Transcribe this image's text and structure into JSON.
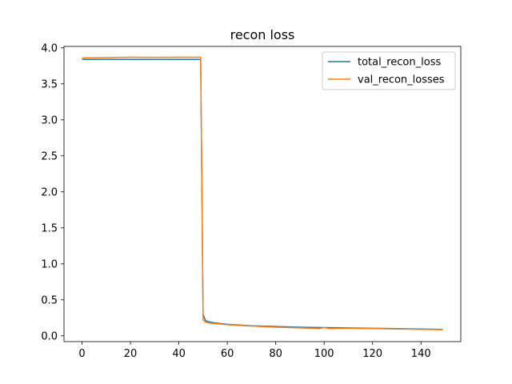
{
  "chart_data": {
    "type": "line",
    "title": "recon loss",
    "xlabel": "",
    "ylabel": "",
    "xlim": [
      -7.45,
      156.45
    ],
    "ylim": [
      -0.08,
      4.02
    ],
    "xticks": [
      0,
      20,
      40,
      60,
      80,
      100,
      120,
      140
    ],
    "yticks": [
      0.0,
      0.5,
      1.0,
      1.5,
      2.0,
      2.5,
      3.0,
      3.5,
      4.0
    ],
    "ytick_labels": [
      "0.0",
      "0.5",
      "1.0",
      "1.5",
      "2.0",
      "2.5",
      "3.0",
      "3.5",
      "4.0"
    ],
    "grid": false,
    "legend_position": "upper right",
    "series": [
      {
        "name": "total_recon_loss",
        "color": "#1f77b4",
        "x": [
          0,
          10,
          20,
          30,
          40,
          49,
          50,
          51,
          53,
          55,
          60,
          65,
          70,
          80,
          90,
          100,
          110,
          120,
          130,
          140,
          149
        ],
        "y": [
          3.84,
          3.84,
          3.84,
          3.84,
          3.84,
          3.84,
          0.3,
          0.21,
          0.19,
          0.18,
          0.16,
          0.15,
          0.14,
          0.13,
          0.12,
          0.115,
          0.11,
          0.105,
          0.1,
          0.095,
          0.09
        ]
      },
      {
        "name": "val_recon_losses",
        "color": "#ff7f0e",
        "x": [
          0,
          10,
          20,
          30,
          40,
          49,
          50,
          51,
          53,
          55,
          60,
          65,
          70,
          80,
          90,
          98,
          100,
          102,
          110,
          120,
          130,
          140,
          149
        ],
        "y": [
          3.86,
          3.865,
          3.87,
          3.868,
          3.87,
          3.87,
          0.22,
          0.19,
          0.175,
          0.17,
          0.155,
          0.145,
          0.135,
          0.12,
          0.11,
          0.1,
          0.115,
          0.1,
          0.105,
          0.1,
          0.095,
          0.09,
          0.085
        ]
      }
    ]
  }
}
